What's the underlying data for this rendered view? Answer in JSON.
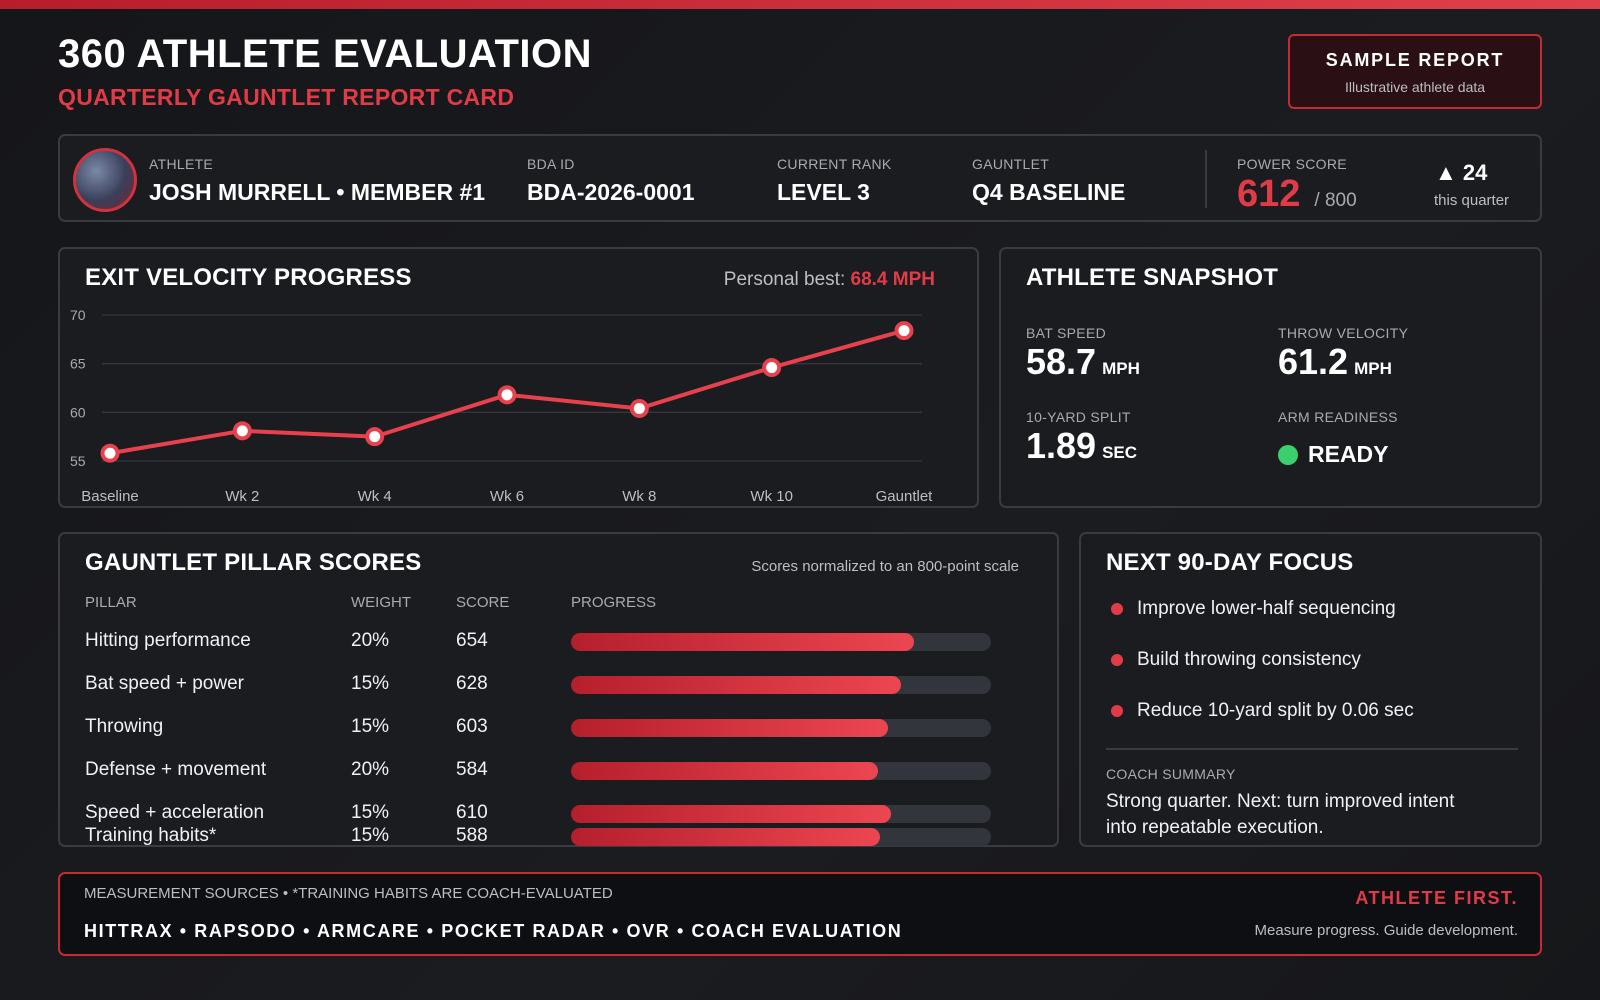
{
  "header": {
    "title": "360 ATHLETE EVALUATION",
    "subtitle": "QUARTERLY GAUNTLET REPORT CARD",
    "badge_title": "SAMPLE REPORT",
    "badge_subtitle": "Illustrative athlete data"
  },
  "athlete": {
    "athlete_label": "ATHLETE",
    "athlete_value": "JOSH MURRELL • MEMBER #1",
    "id_label": "BDA ID",
    "id_value": "BDA-2026-0001",
    "rank_label": "CURRENT RANK",
    "rank_value": "LEVEL 3",
    "gauntlet_label": "GAUNTLET",
    "gauntlet_value": "Q4 BASELINE",
    "power_label": "POWER SCORE",
    "power_value": "612",
    "power_max": "/ 800",
    "delta_value": "▲ 24",
    "delta_label": "this quarter"
  },
  "exit_velocity": {
    "title": "EXIT VELOCITY PROGRESS",
    "pb_label": "Personal best:",
    "pb_value": "68.4 MPH"
  },
  "chart_data": {
    "type": "line",
    "title": "EXIT VELOCITY PROGRESS",
    "categories": [
      "Baseline",
      "Wk 2",
      "Wk 4",
      "Wk 6",
      "Wk 8",
      "Wk 10",
      "Gauntlet"
    ],
    "values": [
      55.8,
      58.1,
      57.5,
      61.8,
      60.4,
      64.6,
      68.4
    ],
    "yticks": [
      55,
      60,
      65,
      70
    ],
    "ylim": [
      55,
      70
    ],
    "grid": true,
    "color": "#e8414e"
  },
  "snapshot": {
    "title": "ATHLETE SNAPSHOT",
    "bat_label": "BAT SPEED",
    "bat_value": "58.7",
    "bat_unit": "MPH",
    "throw_label": "THROW VELOCITY",
    "throw_value": "61.2",
    "throw_unit": "MPH",
    "split_label": "10-YARD SPLIT",
    "split_value": "1.89",
    "split_unit": "SEC",
    "arm_label": "ARM READINESS",
    "arm_value": "READY",
    "ready_color": "#3ccf6e"
  },
  "pillars": {
    "title": "GAUNTLET PILLAR SCORES",
    "note": "Scores normalized to an 800-point scale",
    "col_pillar": "PILLAR",
    "col_weight": "WEIGHT",
    "col_score": "SCORE",
    "col_progress": "PROGRESS",
    "rows": [
      {
        "name": "Hitting performance",
        "weight": "20%",
        "score": "654",
        "progress": 0.8175
      },
      {
        "name": "Bat speed + power",
        "weight": "15%",
        "score": "628",
        "progress": 0.785
      },
      {
        "name": "Throwing",
        "weight": "15%",
        "score": "603",
        "progress": 0.754
      },
      {
        "name": "Defense + movement",
        "weight": "20%",
        "score": "584",
        "progress": 0.73
      },
      {
        "name": "Speed + acceleration",
        "weight": "15%",
        "score": "610",
        "progress": 0.7625
      },
      {
        "name": "Training habits*",
        "weight": "15%",
        "score": "588",
        "progress": 0.735
      }
    ]
  },
  "focus": {
    "title": "NEXT 90-DAY FOCUS",
    "items": [
      "Improve lower-half sequencing",
      "Build throwing consistency",
      "Reduce 10-yard split by 0.06 sec"
    ],
    "summary_label": "COACH SUMMARY",
    "summary_text": "Strong quarter. Next: turn improved intent into repeatable execution."
  },
  "footer": {
    "sources_label": "MEASUREMENT SOURCES • *TRAINING HABITS ARE COACH-EVALUATED",
    "tools": "HITTRAX • RAPSODO • ARMCARE • POCKET RADAR • OVR • COACH EVALUATION",
    "motto": "ATHLETE FIRST.",
    "tagline": "Measure progress. Guide development."
  },
  "colors": {
    "accent": "#e23b48",
    "background": "#1b1c20"
  }
}
